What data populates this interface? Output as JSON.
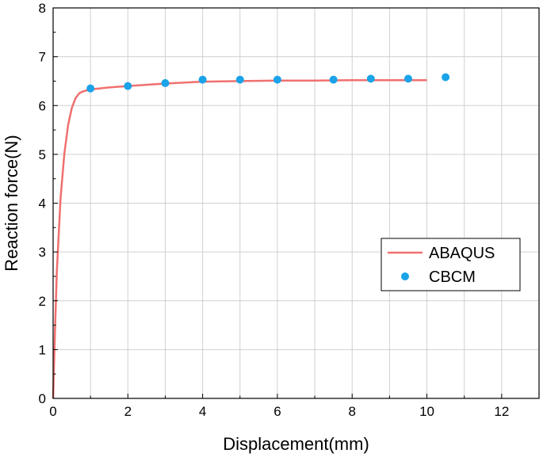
{
  "chart_data": {
    "type": "line",
    "title": "",
    "xlabel": "Displacement(mm)",
    "ylabel": "Reaction force(N)",
    "xlim": [
      0,
      13
    ],
    "ylim": [
      0,
      8
    ],
    "x_ticks": [
      "0",
      "2",
      "4",
      "6",
      "8",
      "10",
      "12"
    ],
    "y_ticks": [
      "0",
      "1",
      "2",
      "3",
      "4",
      "5",
      "6",
      "7",
      "8"
    ],
    "grid": true,
    "legend_position": "right",
    "colors": {
      "abaqus": "#f07070",
      "cbcm": "#1aa3e8"
    },
    "series": [
      {
        "name": "ABAQUS",
        "kind": "line",
        "x": [
          0,
          0.05,
          0.1,
          0.2,
          0.3,
          0.4,
          0.5,
          0.6,
          0.7,
          0.8,
          0.9,
          1.0,
          1.5,
          2,
          3,
          4,
          5,
          6,
          7,
          8,
          9,
          10
        ],
        "y": [
          0,
          1.4,
          2.6,
          4.1,
          5.0,
          5.6,
          5.95,
          6.15,
          6.25,
          6.29,
          6.31,
          6.33,
          6.37,
          6.4,
          6.45,
          6.49,
          6.5,
          6.51,
          6.51,
          6.52,
          6.52,
          6.52
        ]
      },
      {
        "name": "CBCM",
        "kind": "scatter",
        "x": [
          1,
          2,
          3,
          4,
          5,
          6,
          7.5,
          8.5,
          9.5,
          10.5
        ],
        "y": [
          6.35,
          6.4,
          6.46,
          6.53,
          6.53,
          6.53,
          6.53,
          6.55,
          6.55,
          6.58
        ]
      }
    ]
  }
}
